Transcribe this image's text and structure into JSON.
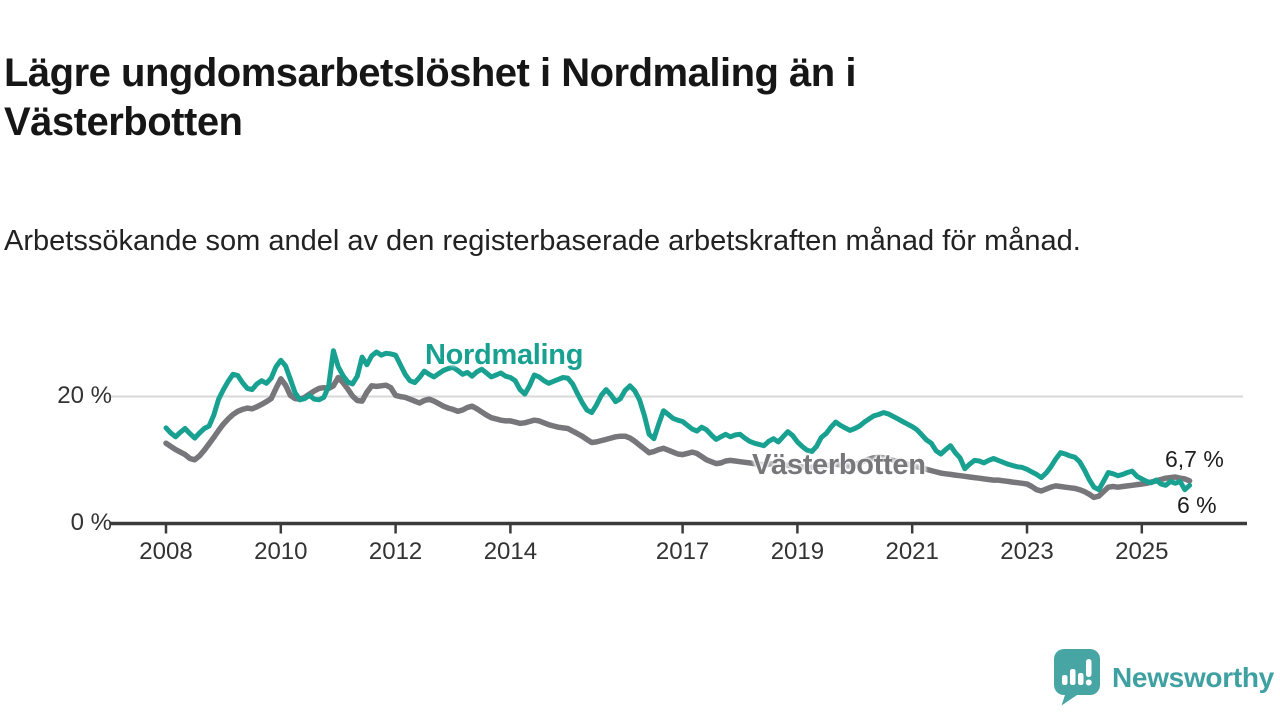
{
  "header": {
    "title": "Lägre ungdomsarbetslöshet i Nordmaling än i Västerbotten",
    "subtitle": "Arbetssökande som andel av den registerbaserade arbetskraften månad för månad."
  },
  "footer": {
    "brand": "Newsworthy"
  },
  "chart_data": {
    "type": "line",
    "title": "Lägre ungdomsarbetslöshet i Nordmaling än i Västerbotten",
    "xlabel": "",
    "ylabel": "Arbetssökande som andel av den registerbaserade arbetskraften",
    "x_start_year": 2008,
    "x_step_months": 1,
    "x_end": "2025-11",
    "ylim": [
      0,
      28
    ],
    "grid": "single-gridline-at-20",
    "legend_position": "inline-labels",
    "yticks": [
      {
        "value": 20,
        "label": "20 %"
      },
      {
        "value": 0,
        "label": "0 %"
      }
    ],
    "xticks": [
      {
        "value": 2008,
        "label": "2008"
      },
      {
        "value": 2010,
        "label": "2010"
      },
      {
        "value": 2012,
        "label": "2012"
      },
      {
        "value": 2014,
        "label": "2014"
      },
      {
        "value": 2017,
        "label": "2017"
      },
      {
        "value": 2019,
        "label": "2019"
      },
      {
        "value": 2021,
        "label": "2021"
      },
      {
        "value": 2023,
        "label": "2023"
      },
      {
        "value": 2025,
        "label": "2025"
      }
    ],
    "series": [
      {
        "name": "Västerbotten",
        "color": "#77767b",
        "stroke_width": 5.5,
        "end_label": "6,7 %",
        "end_value": 6.7,
        "values": [
          12.6,
          12.1,
          11.6,
          11.2,
          10.8,
          10.2,
          10.0,
          10.6,
          11.5,
          12.5,
          13.5,
          14.6,
          15.6,
          16.4,
          17.1,
          17.6,
          17.9,
          18.1,
          18.0,
          18.3,
          18.7,
          19.1,
          19.6,
          21.2,
          22.7,
          21.7,
          20.1,
          19.6,
          19.5,
          19.8,
          20.3,
          20.8,
          21.2,
          21.3,
          21.2,
          21.6,
          22.9,
          22.1,
          21.1,
          20.0,
          19.3,
          19.2,
          20.6,
          21.6,
          21.5,
          21.6,
          21.7,
          21.3,
          20.1,
          19.9,
          19.8,
          19.5,
          19.2,
          18.9,
          19.3,
          19.5,
          19.2,
          18.8,
          18.4,
          18.1,
          17.9,
          17.6,
          17.8,
          18.2,
          18.4,
          18.0,
          17.5,
          17.0,
          16.6,
          16.4,
          16.2,
          16.1,
          16.1,
          15.9,
          15.7,
          15.8,
          16.0,
          16.2,
          16.1,
          15.8,
          15.5,
          15.3,
          15.1,
          15.0,
          14.9,
          14.5,
          14.1,
          13.7,
          13.2,
          12.7,
          12.8,
          13.0,
          13.2,
          13.4,
          13.6,
          13.7,
          13.7,
          13.4,
          12.9,
          12.3,
          11.7,
          11.1,
          11.3,
          11.6,
          11.8,
          11.5,
          11.2,
          10.9,
          10.8,
          11.0,
          11.2,
          11.0,
          10.5,
          10.0,
          9.7,
          9.4,
          9.5,
          9.8,
          9.9,
          9.8,
          9.7,
          9.6,
          9.5,
          9.4,
          9.3,
          9.2,
          9.3,
          9.4,
          9.3,
          9.2,
          9.1,
          9.0,
          9.0,
          8.9,
          8.8,
          8.8,
          8.9,
          9.0,
          9.1,
          9.2,
          9.3,
          9.2,
          9.1,
          9.0,
          9.2,
          9.5,
          9.8,
          10.1,
          10.3,
          10.4,
          10.3,
          10.1,
          9.9,
          9.7,
          9.5,
          9.3,
          9.1,
          8.9,
          8.7,
          8.5,
          8.3,
          8.1,
          7.9,
          7.8,
          7.7,
          7.6,
          7.5,
          7.4,
          7.3,
          7.2,
          7.1,
          7.0,
          6.9,
          6.8,
          6.8,
          6.7,
          6.6,
          6.5,
          6.4,
          6.3,
          6.2,
          5.8,
          5.3,
          5.1,
          5.4,
          5.7,
          5.9,
          5.8,
          5.7,
          5.6,
          5.5,
          5.3,
          5.0,
          4.6,
          4.1,
          4.3,
          5.0,
          5.7,
          5.8,
          5.7,
          5.8,
          5.9,
          6.0,
          6.1,
          6.2,
          6.3,
          6.5,
          6.7,
          6.9,
          7.1,
          7.2,
          7.3,
          7.1,
          7.0,
          6.7
        ]
      },
      {
        "name": "Nordmaling",
        "color": "#18a191",
        "stroke_width": 5,
        "end_label": "6 %",
        "end_value": 6.0,
        "values": [
          15.0,
          14.2,
          13.6,
          14.3,
          14.9,
          14.1,
          13.4,
          14.2,
          14.9,
          15.3,
          17.0,
          19.5,
          21.0,
          22.3,
          23.4,
          23.2,
          22.1,
          21.2,
          21.0,
          21.9,
          22.4,
          22.0,
          22.8,
          24.6,
          25.6,
          24.7,
          22.6,
          20.5,
          19.4,
          19.6,
          20.1,
          19.5,
          19.4,
          19.8,
          21.5,
          27.1,
          24.6,
          23.2,
          22.2,
          21.9,
          23.1,
          26.1,
          24.9,
          26.3,
          26.9,
          26.4,
          26.7,
          26.6,
          26.4,
          24.9,
          23.4,
          22.4,
          22.1,
          22.9,
          23.9,
          23.4,
          23.0,
          23.5,
          24.0,
          24.3,
          24.5,
          24.0,
          23.4,
          23.7,
          23.1,
          23.8,
          24.2,
          23.6,
          23.0,
          23.3,
          23.6,
          23.1,
          22.9,
          22.4,
          21.0,
          20.3,
          21.6,
          23.3,
          23.0,
          22.4,
          22.0,
          22.3,
          22.6,
          22.9,
          22.8,
          21.9,
          20.4,
          19.0,
          17.8,
          17.4,
          18.6,
          20.1,
          21.0,
          20.2,
          19.1,
          19.6,
          20.9,
          21.6,
          20.8,
          19.4,
          17.0,
          14.0,
          13.3,
          15.6,
          17.7,
          17.1,
          16.5,
          16.2,
          16.0,
          15.4,
          14.8,
          14.5,
          15.1,
          14.7,
          13.9,
          13.2,
          13.6,
          14.0,
          13.6,
          13.9,
          14.0,
          13.4,
          12.9,
          12.6,
          12.4,
          12.2,
          12.9,
          13.3,
          12.8,
          13.6,
          14.4,
          13.8,
          12.8,
          12.1,
          11.5,
          11.3,
          12.1,
          13.5,
          14.1,
          15.1,
          15.9,
          15.4,
          15.0,
          14.6,
          14.9,
          15.3,
          15.9,
          16.4,
          16.9,
          17.1,
          17.4,
          17.2,
          16.8,
          16.4,
          16.0,
          15.6,
          15.2,
          14.7,
          13.9,
          13.1,
          12.6,
          11.4,
          10.9,
          11.6,
          12.2,
          11.1,
          10.3,
          8.6,
          9.3,
          9.9,
          9.8,
          9.5,
          9.9,
          10.2,
          9.9,
          9.6,
          9.3,
          9.1,
          8.9,
          8.8,
          8.5,
          8.1,
          7.7,
          7.2,
          7.9,
          8.9,
          10.1,
          11.1,
          10.9,
          10.6,
          10.4,
          9.7,
          8.4,
          6.9,
          5.7,
          5.3,
          6.6,
          8.0,
          7.8,
          7.5,
          7.7,
          8.0,
          8.2,
          7.4,
          7.0,
          6.6,
          6.4,
          6.8,
          6.2,
          6.0,
          6.6,
          6.3,
          6.6,
          5.3,
          6.0
        ]
      }
    ],
    "annotations": [
      {
        "text": "6,7 %",
        "refers_to": "Västerbotten"
      },
      {
        "text": "6 %",
        "refers_to": "Nordmaling"
      }
    ],
    "colors": {
      "nordmaling_line": "#18a191",
      "vasterbotten_line": "#77767b",
      "axis": "#3b3b3b",
      "gridline": "#d8d8d8",
      "tick_text": "#333333",
      "logo_teal": "#47a5a3"
    }
  }
}
